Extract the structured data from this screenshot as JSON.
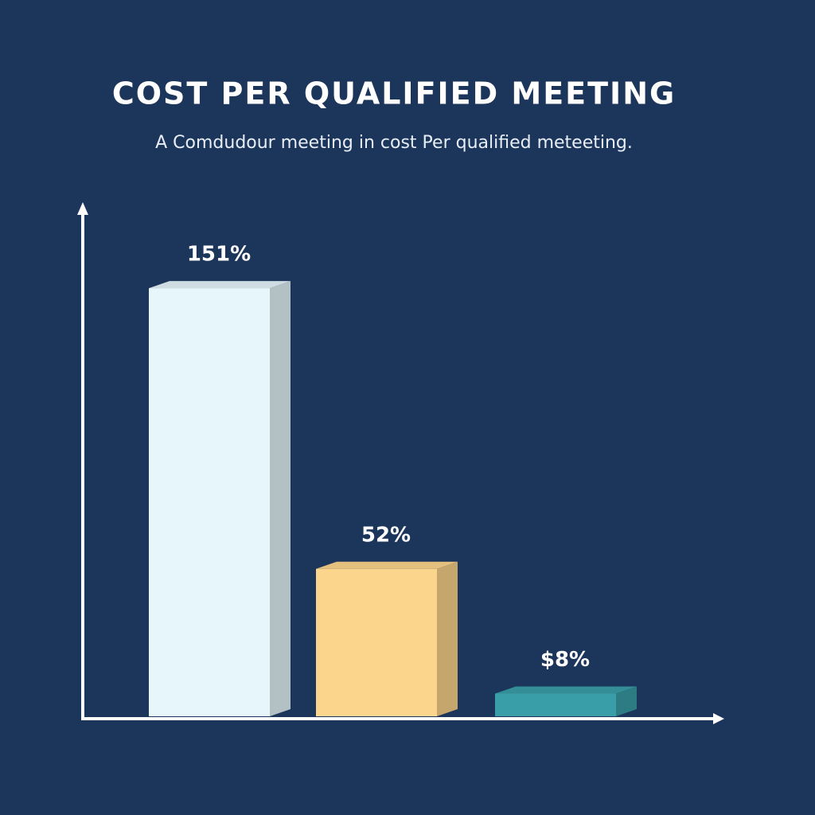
{
  "chart_data": {
    "type": "bar",
    "title": "COST PER QUALIFIED MEETING",
    "subtitle": "A Comdudour meeting in cost Per qualified meteeting.",
    "categories": [
      null,
      null,
      null
    ],
    "values": [
      151,
      52,
      8
    ],
    "value_labels": [
      "151%",
      "52%",
      "$8%"
    ],
    "colors": [
      "#e6f6fb",
      "#fcd58c",
      "#3a9ea8"
    ],
    "ylim": [
      0,
      160
    ]
  }
}
